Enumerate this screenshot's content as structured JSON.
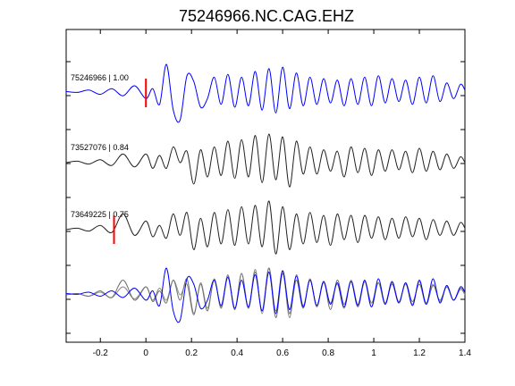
{
  "chart_data": {
    "type": "line",
    "title": "75246966.NC.CAG.EHZ",
    "xlabel": "",
    "ylabel": "",
    "xlim": [
      -0.35,
      1.4
    ],
    "xticks": [
      -0.2,
      0,
      0.2,
      0.4,
      0.6,
      0.8,
      1.0,
      1.2,
      1.4
    ],
    "xtick_labels": [
      "-0.2",
      "0",
      "0.2",
      "0.4",
      "0.6",
      "0.8",
      "1",
      "1.2",
      "1.4"
    ],
    "grid": false,
    "legend": "none",
    "traces": [
      {
        "label": "75246966 | 1.00",
        "color": "#0000ff",
        "pick_time": 0.0,
        "pick_color": "#ff0000",
        "x": [
          -0.35,
          -0.3,
          -0.25,
          -0.2,
          -0.15,
          -0.1,
          -0.05,
          0.0,
          0.03,
          0.06,
          0.09,
          0.12,
          0.15,
          0.18,
          0.21,
          0.24,
          0.27,
          0.3,
          0.33,
          0.36,
          0.39,
          0.42,
          0.45,
          0.48,
          0.51,
          0.54,
          0.57,
          0.6,
          0.63,
          0.66,
          0.69,
          0.72,
          0.75,
          0.78,
          0.81,
          0.84,
          0.87,
          0.9,
          0.93,
          0.96,
          0.99,
          1.02,
          1.05,
          1.08,
          1.11,
          1.14,
          1.17,
          1.2,
          1.23,
          1.26,
          1.29,
          1.32,
          1.35,
          1.38,
          1.4
        ],
        "y": [
          0.05,
          0.02,
          0.1,
          -0.05,
          0.15,
          -0.1,
          0.25,
          -0.2,
          0.15,
          -0.4,
          1.0,
          -0.6,
          -0.95,
          0.6,
          0.4,
          -0.5,
          -0.2,
          0.55,
          -0.4,
          0.65,
          -0.5,
          0.55,
          -0.45,
          0.75,
          -0.6,
          0.85,
          -0.7,
          0.9,
          -0.55,
          0.7,
          -0.45,
          0.55,
          -0.4,
          0.5,
          -0.35,
          0.45,
          -0.45,
          0.5,
          -0.4,
          0.55,
          -0.45,
          0.6,
          -0.35,
          0.5,
          -0.3,
          0.45,
          -0.4,
          0.55,
          -0.35,
          0.6,
          -0.3,
          0.35,
          -0.2,
          0.3,
          0.1
        ]
      },
      {
        "label": "73527076 | 0.84",
        "color": "#222222",
        "x": [
          -0.35,
          -0.3,
          -0.25,
          -0.2,
          -0.15,
          -0.1,
          -0.05,
          0.0,
          0.03,
          0.06,
          0.09,
          0.12,
          0.15,
          0.18,
          0.21,
          0.24,
          0.27,
          0.3,
          0.33,
          0.36,
          0.39,
          0.42,
          0.45,
          0.48,
          0.51,
          0.54,
          0.57,
          0.6,
          0.63,
          0.66,
          0.69,
          0.72,
          0.75,
          0.78,
          0.81,
          0.84,
          0.87,
          0.9,
          0.93,
          0.96,
          0.99,
          1.02,
          1.05,
          1.08,
          1.11,
          1.14,
          1.17,
          1.2,
          1.23,
          1.26,
          1.29,
          1.32,
          1.35,
          1.38,
          1.4
        ],
        "y": [
          0.0,
          0.05,
          -0.05,
          0.1,
          -0.1,
          0.3,
          -0.15,
          0.3,
          -0.2,
          0.25,
          -0.2,
          0.55,
          0.0,
          0.4,
          -0.75,
          0.45,
          -0.5,
          0.55,
          -0.45,
          0.75,
          -0.55,
          0.8,
          -0.5,
          0.95,
          -0.7,
          1.0,
          -0.6,
          0.9,
          -0.85,
          0.75,
          -0.4,
          0.55,
          -0.4,
          0.45,
          -0.3,
          0.4,
          -0.5,
          0.55,
          -0.35,
          0.5,
          -0.45,
          0.45,
          -0.3,
          0.45,
          -0.25,
          0.4,
          -0.35,
          0.5,
          -0.3,
          0.4,
          -0.25,
          0.3,
          -0.2,
          0.2,
          0.0
        ]
      },
      {
        "label": "73649225 | 0.75",
        "color": "#222222",
        "pick_time": -0.14,
        "pick_color": "#ff0000",
        "x": [
          -0.35,
          -0.3,
          -0.25,
          -0.2,
          -0.15,
          -0.1,
          -0.05,
          0.0,
          0.03,
          0.06,
          0.09,
          0.12,
          0.15,
          0.18,
          0.21,
          0.24,
          0.27,
          0.3,
          0.33,
          0.36,
          0.39,
          0.42,
          0.45,
          0.48,
          0.51,
          0.54,
          0.57,
          0.6,
          0.63,
          0.66,
          0.69,
          0.72,
          0.75,
          0.78,
          0.81,
          0.84,
          0.87,
          0.9,
          0.93,
          0.96,
          0.99,
          1.02,
          1.05,
          1.08,
          1.11,
          1.14,
          1.17,
          1.2,
          1.23,
          1.26,
          1.29,
          1.32,
          1.35,
          1.38,
          1.4
        ],
        "y": [
          0.0,
          0.05,
          -0.05,
          0.15,
          -0.1,
          0.55,
          -0.2,
          0.3,
          -0.25,
          0.15,
          -0.3,
          0.55,
          -0.2,
          0.6,
          -0.7,
          0.4,
          -0.6,
          0.6,
          -0.5,
          0.7,
          -0.55,
          0.8,
          -0.5,
          0.85,
          -0.6,
          1.0,
          -0.85,
          0.8,
          -0.7,
          0.55,
          -0.5,
          0.6,
          -0.45,
          0.5,
          -0.55,
          0.55,
          -0.35,
          0.5,
          -0.45,
          0.5,
          -0.3,
          0.45,
          -0.35,
          0.4,
          -0.3,
          0.45,
          -0.25,
          0.4,
          -0.35,
          0.35,
          -0.2,
          0.3,
          -0.2,
          0.25,
          0.05
        ]
      }
    ],
    "overlay": {
      "description_label": "",
      "traces_from": [
        "73527076 | 0.84",
        "73649225 | 0.75",
        "75246966 | 1.00"
      ],
      "colors": [
        "#8c8c8c",
        "#707070",
        "#0000ff"
      ]
    }
  }
}
